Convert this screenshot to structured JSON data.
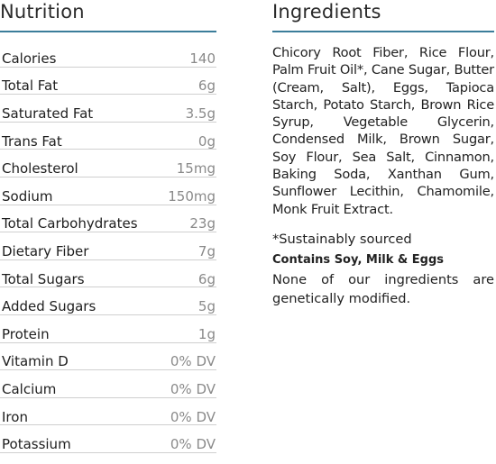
{
  "nutrition": {
    "title": "Nutrition",
    "rows": [
      {
        "name": "Calories",
        "value": "140"
      },
      {
        "name": "Total Fat",
        "value": "6g"
      },
      {
        "name": "Saturated Fat",
        "value": "3.5g"
      },
      {
        "name": "Trans Fat",
        "value": "0g"
      },
      {
        "name": "Cholesterol",
        "value": "15mg"
      },
      {
        "name": "Sodium",
        "value": "150mg"
      },
      {
        "name": "Total Carbohydrates",
        "value": "23g"
      },
      {
        "name": "Dietary Fiber",
        "value": "7g"
      },
      {
        "name": "Total Sugars",
        "value": "6g"
      },
      {
        "name": "Added Sugars",
        "value": "5g"
      },
      {
        "name": "Protein",
        "value": "1g"
      },
      {
        "name": "Vitamin D",
        "value": "0% DV"
      },
      {
        "name": "Calcium",
        "value": "0% DV"
      },
      {
        "name": "Iron",
        "value": "0% DV"
      },
      {
        "name": "Potassium",
        "value": "0% DV"
      }
    ]
  },
  "ingredients": {
    "title": "Ingredients",
    "text": "Chicory Root Fiber, Rice Flour, Palm Fruit Oil*, Cane Sugar, Butter (Cream, Salt), Eggs, Tapioca Starch, Potato Starch, Brown Rice Syrup, Vegetable Glycerin, Condensed Milk, Brown Sugar, Soy Flour, Sea Salt, Cinnamon, Baking Soda, Xanthan Gum, Sunflower Lecithin, Chamomile, Monk Fruit Extract.",
    "footnote": "*Sustainably sourced",
    "allergen": "Contains Soy, Milk & Eggs",
    "gmo_statement": "None of our ingredients are genetically modified."
  },
  "colors": {
    "rule": "#3b7d9a",
    "value_text": "#8a8a8a"
  }
}
